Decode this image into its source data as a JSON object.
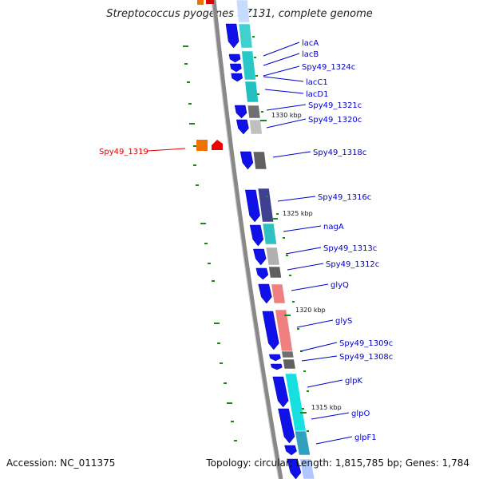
{
  "title": "Streptococcus pyogenes NZ131, complete genome",
  "footer": {
    "accession": "Accession: NC_011375",
    "summary": "Topology: circular; Length: 1,815,785 bp; Genes: 1,784"
  },
  "colors": {
    "forward_gene": "#1010e8",
    "label_blue": "#0000cc",
    "label_red": "#dd0000",
    "backbone": "#888888",
    "gc_tick": "#1a8a1a"
  },
  "scale_labels": [
    "1330 kbp",
    "1325 kbp",
    "1320 kbp",
    "1315 kbp"
  ],
  "genes": [
    {
      "name": "lacA"
    },
    {
      "name": "lacB"
    },
    {
      "name": "Spy49_1324c"
    },
    {
      "name": "lacC1"
    },
    {
      "name": "lacD1"
    },
    {
      "name": "Spy49_1321c"
    },
    {
      "name": "Spy49_1320c"
    },
    {
      "name": "Spy49_1319",
      "highlight": true
    },
    {
      "name": "Spy49_1318c"
    },
    {
      "name": "Spy49_1316c"
    },
    {
      "name": "nagA"
    },
    {
      "name": "Spy49_1313c"
    },
    {
      "name": "Spy49_1312c"
    },
    {
      "name": "glyQ"
    },
    {
      "name": "glyS"
    },
    {
      "name": "Spy49_1309c"
    },
    {
      "name": "Spy49_1308c"
    },
    {
      "name": "glpK"
    },
    {
      "name": "glpO"
    },
    {
      "name": "glpF1"
    }
  ]
}
